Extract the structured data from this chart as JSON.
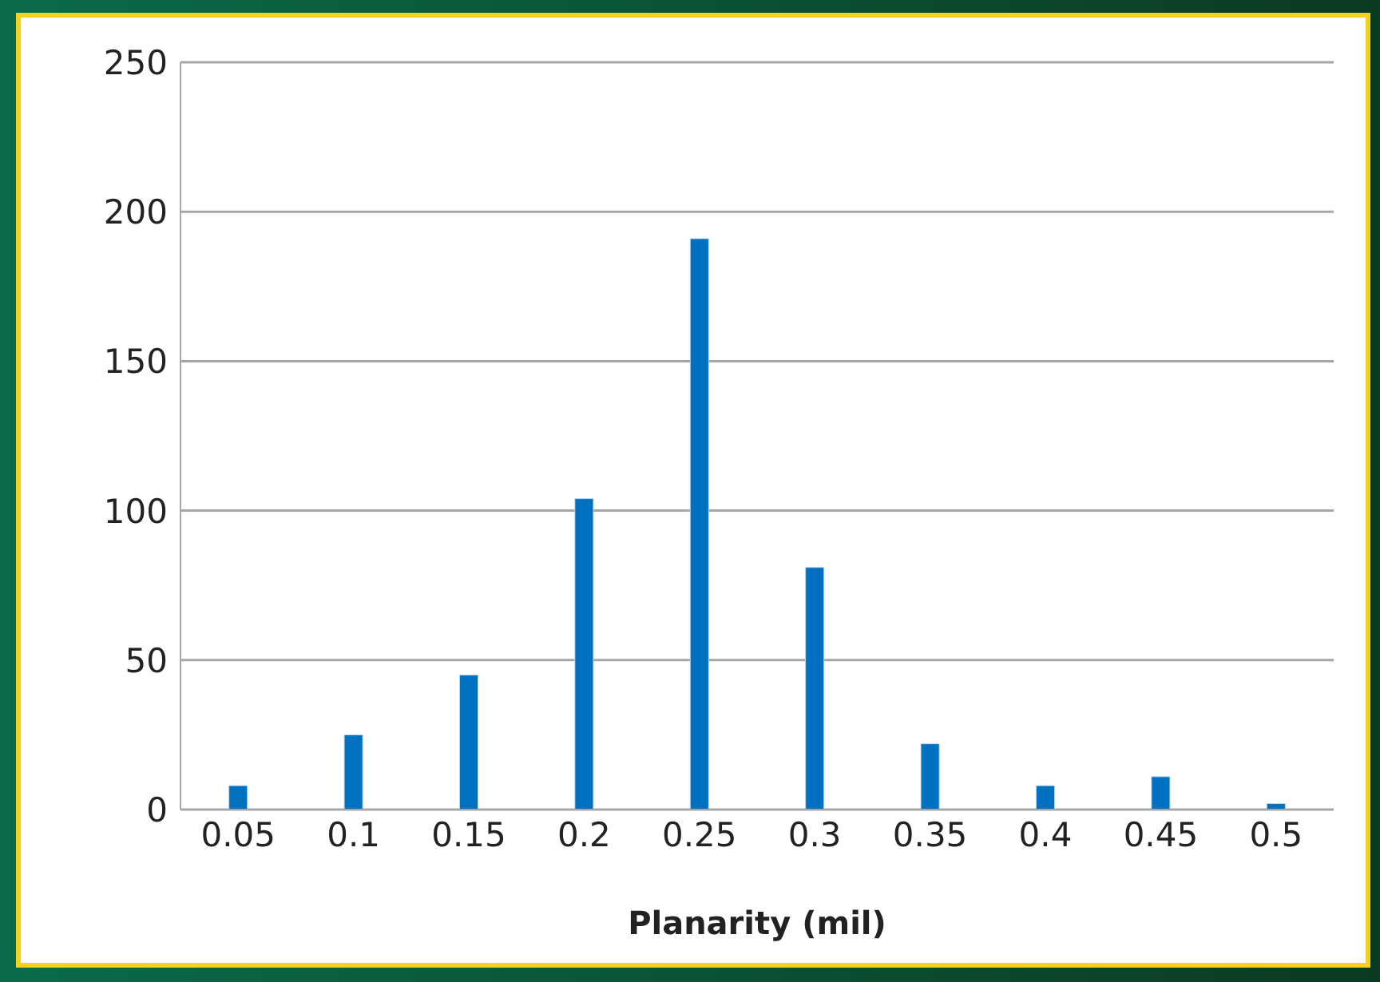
{
  "chart_data": {
    "type": "bar",
    "xlabel": "Planarity (mil)",
    "categories": [
      "0.05",
      "0.1",
      "0.15",
      "0.2",
      "0.25",
      "0.3",
      "0.35",
      "0.4",
      "0.45",
      "0.5"
    ],
    "values": [
      8,
      25,
      45,
      104,
      191,
      81,
      22,
      8,
      11,
      2
    ],
    "color": "#0070c0",
    "ylim": [
      0,
      250
    ],
    "yticks": [
      0,
      50,
      100,
      150,
      200,
      250
    ],
    "grid": "y",
    "legend": false
  }
}
